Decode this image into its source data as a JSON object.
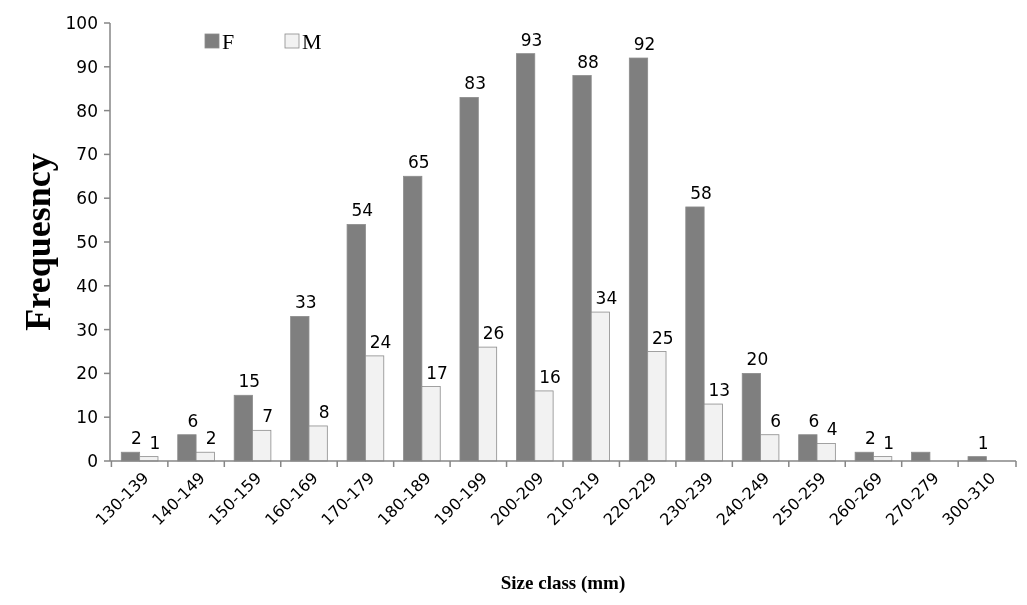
{
  "chart_data": {
    "type": "bar",
    "xlabel": "Size class (mm)",
    "ylabel": "Frequesncy",
    "categories": [
      "130-139",
      "140-149",
      "150-159",
      "160-169",
      "170-179",
      "180-189",
      "190-199",
      "200-209",
      "210-219",
      "220-229",
      "230-239",
      "240-249",
      "250-259",
      "260-269",
      "270-279",
      "300-310"
    ],
    "series": [
      {
        "name": "F",
        "color": "#7f7f7f",
        "values": [
          2,
          6,
          15,
          33,
          54,
          65,
          83,
          93,
          88,
          92,
          58,
          20,
          6,
          2,
          2,
          1
        ],
        "value_labels": [
          "2",
          "6",
          "15",
          "33",
          "54",
          "65",
          "83",
          "93",
          "88",
          "92",
          "58",
          "20",
          "6",
          "2",
          null,
          "1"
        ]
      },
      {
        "name": "M",
        "color": "#f2f2f2",
        "values": [
          1,
          2,
          7,
          8,
          24,
          17,
          26,
          16,
          34,
          25,
          13,
          6,
          4,
          1,
          null,
          null
        ],
        "value_labels": [
          "1",
          "2",
          "7",
          "8",
          "24",
          "17",
          "26",
          "16",
          "34",
          "25",
          "13",
          "6",
          "4",
          "1",
          null,
          null
        ]
      }
    ],
    "ylim": [
      0,
      100
    ],
    "yticks": [
      0,
      10,
      20,
      30,
      40,
      50,
      60,
      70,
      80,
      90,
      100
    ],
    "grid": false,
    "legend": "top left"
  }
}
